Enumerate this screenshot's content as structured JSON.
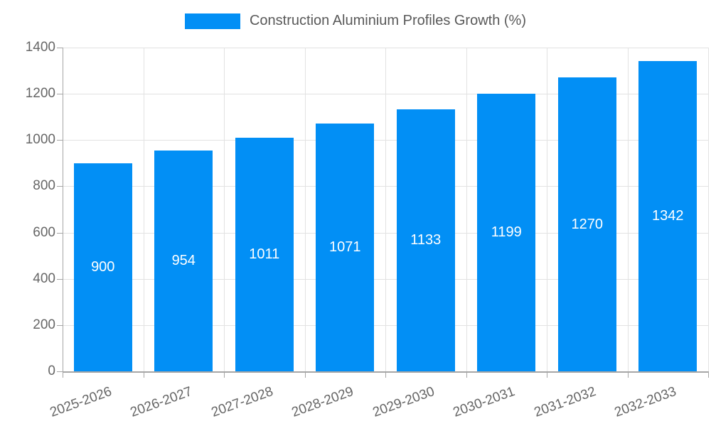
{
  "chart_data": {
    "type": "bar",
    "title": "Construction Aluminium Profiles Growth (%)",
    "legend": {
      "position": "top",
      "entries": [
        "Construction Aluminium Profiles Growth (%)"
      ]
    },
    "categories": [
      "2025-2026",
      "2026-2027",
      "2027-2028",
      "2028-2029",
      "2029-2030",
      "2030-2031",
      "2031-2032",
      "2032-2033"
    ],
    "series": [
      {
        "name": "Construction Aluminium Profiles Growth (%)",
        "values": [
          900,
          954,
          1011,
          1071,
          1133,
          1199,
          1270,
          1342
        ]
      }
    ],
    "value_labels": {
      "position": "inside-center",
      "color": "#ffffff"
    },
    "xlabel": "",
    "ylabel": "",
    "ylim": [
      0,
      1400
    ],
    "ytick_step": 200,
    "yticks": [
      0,
      200,
      400,
      600,
      800,
      1000,
      1200,
      1400
    ],
    "grid": "horizontal-and-vertical",
    "x_tick_rotation_deg": -20,
    "colors": {
      "bar": "#028ff5",
      "grid": "#e2e2e2",
      "axis": "#a6a6a6",
      "tick_text": "#666666",
      "legend_text": "#595959",
      "background": "#ffffff"
    }
  }
}
